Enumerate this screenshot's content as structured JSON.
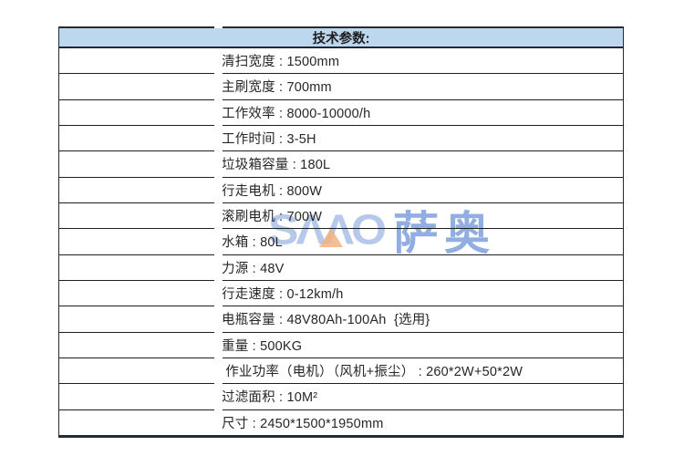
{
  "table": {
    "header": {
      "title": "技术参数:"
    },
    "rows": [
      {
        "text": "清扫宽度 : 1500mm"
      },
      {
        "text": "主刷宽度 : 700mm"
      },
      {
        "text": "工作效率 : 8000-10000/h"
      },
      {
        "text": "工作时间 : 3-5H"
      },
      {
        "text": "垃圾箱容量 : 180L"
      },
      {
        "text": "行走电机 : 800W"
      },
      {
        "text": "滚刷电机 : 700W"
      },
      {
        "text": "水箱 : 80L"
      },
      {
        "text": "力源 : 48V"
      },
      {
        "text": "行走速度 : 0-12km/h"
      },
      {
        "text": "电瓶容量 : 48V80Ah-100Ah  {选用}"
      },
      {
        "text": "重量 : 500KG"
      },
      {
        "text": " 作业功率（电机）（风机+振尘） : 260*2W+50*2W"
      },
      {
        "text": "过滤面积 : 10M²"
      },
      {
        "text": "尺寸 : 2450*1500*1950mm"
      }
    ],
    "colors": {
      "header_bg": "#BDD7EE",
      "border_dark": "#232C36",
      "row_line": "#1F1F1F",
      "text": "#262626"
    }
  },
  "watermark": {
    "latin": "SΛΛO",
    "cn": "萨奥",
    "blue": "#4472C4",
    "orange": "#F4B183"
  }
}
